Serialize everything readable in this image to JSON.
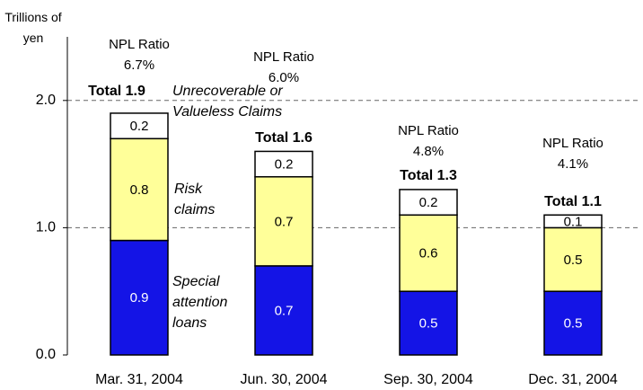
{
  "chart_data": {
    "type": "stacked_bar",
    "y_label": "Trillions of yen",
    "categories": [
      "Mar. 31, 2004",
      "Jun. 30, 2004",
      "Sep. 30, 2004",
      "Dec. 31, 2004"
    ],
    "series": [
      {
        "name": "Special attention loans",
        "color": "#1414e6",
        "values": [
          0.9,
          0.7,
          0.5,
          0.5
        ]
      },
      {
        "name": "Risk claims",
        "color": "#ffff99",
        "values": [
          0.8,
          0.7,
          0.6,
          0.5
        ]
      },
      {
        "name": "Unrecoverable or Valueless Claims",
        "color": "#ffffff",
        "values": [
          0.2,
          0.2,
          0.2,
          0.1
        ]
      }
    ],
    "totals": {
      "values": [
        1.9,
        1.6,
        1.3,
        1.1
      ],
      "value_labels": [
        "Total 1.9",
        "Total 1.6",
        "Total 1.3",
        "Total 1.1"
      ]
    },
    "npl_ratio": {
      "label": "NPL Ratio",
      "values": [
        6.7,
        6.0,
        4.8,
        4.1
      ],
      "value_labels": [
        "6.7%",
        "6.0%",
        "4.8%",
        "4.1%"
      ]
    },
    "ylim": [
      0,
      2.5
    ],
    "yticks": [
      {
        "value": 0,
        "label": "0.0"
      },
      {
        "value": 1,
        "label": "1.0"
      },
      {
        "value": 2,
        "label": "2.0"
      }
    ],
    "grid": true
  }
}
